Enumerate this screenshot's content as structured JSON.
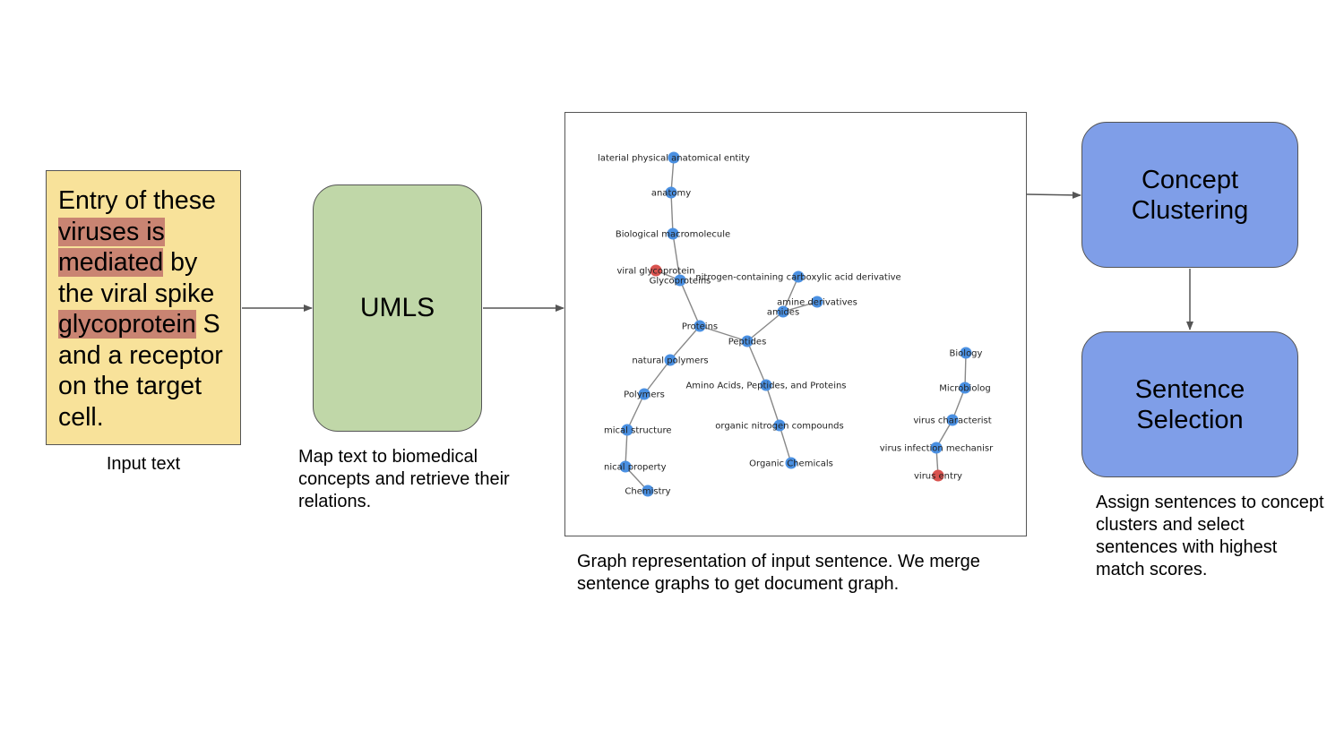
{
  "input": {
    "segments": [
      {
        "text": "Entry of these ",
        "hl": false
      },
      {
        "text": "viruses is",
        "hl": true
      },
      {
        "text": " ",
        "hl": false
      },
      {
        "text": "mediated",
        "hl": true
      },
      {
        "text": " by the viral spike ",
        "hl": false
      },
      {
        "text": "glycoprotein",
        "hl": true
      },
      {
        "text": " S and a receptor on the target cell.",
        "hl": false
      }
    ],
    "caption": "Input text"
  },
  "umls": {
    "label": "UMLS",
    "caption": "Map text to biomedical concepts and retrieve their relations."
  },
  "graph": {
    "caption": "Graph representation of input sentence. We merge sentence graphs to get document graph.",
    "nodes": [
      {
        "id": "n1",
        "label": "laterial physical anatomical entity",
        "color": "blue"
      },
      {
        "id": "n2",
        "label": "anatomy",
        "color": "blue"
      },
      {
        "id": "n3",
        "label": "Biological macromolecule",
        "color": "blue"
      },
      {
        "id": "n4",
        "label": "viral glycoprotein",
        "color": "red"
      },
      {
        "id": "n5",
        "label": "Glycoproteins",
        "color": "blue"
      },
      {
        "id": "n6",
        "label": "nitrogen-containing carboxylic acid derivative",
        "color": "blue"
      },
      {
        "id": "n7",
        "label": "amine derivatives",
        "color": "blue"
      },
      {
        "id": "n8",
        "label": "amides",
        "color": "blue"
      },
      {
        "id": "n9",
        "label": "Proteins",
        "color": "blue"
      },
      {
        "id": "n10",
        "label": "Peptides",
        "color": "blue"
      },
      {
        "id": "n11",
        "label": "natural polymers",
        "color": "blue"
      },
      {
        "id": "n12",
        "label": "Amino Acids, Peptides, and Proteins",
        "color": "blue"
      },
      {
        "id": "n13",
        "label": "Polymers",
        "color": "blue"
      },
      {
        "id": "n14",
        "label": "organic nitrogen compounds",
        "color": "blue"
      },
      {
        "id": "n15",
        "label": "mical structure",
        "color": "blue"
      },
      {
        "id": "n16",
        "label": "Organic Chemicals",
        "color": "blue"
      },
      {
        "id": "n17",
        "label": "nical property",
        "color": "blue"
      },
      {
        "id": "n18",
        "label": "Chemistry",
        "color": "blue"
      },
      {
        "id": "n19",
        "label": "Biology",
        "color": "blue"
      },
      {
        "id": "n20",
        "label": "Microbiolog",
        "color": "blue"
      },
      {
        "id": "n21",
        "label": "virus characterist",
        "color": "blue"
      },
      {
        "id": "n22",
        "label": "virus infection mechanisr",
        "color": "blue"
      },
      {
        "id": "n23",
        "label": "virus entry",
        "color": "red"
      }
    ],
    "edges": [
      [
        "n1",
        "n2"
      ],
      [
        "n2",
        "n3"
      ],
      [
        "n3",
        "n5"
      ],
      [
        "n4",
        "n5"
      ],
      [
        "n5",
        "n9"
      ],
      [
        "n9",
        "n10"
      ],
      [
        "n9",
        "n11"
      ],
      [
        "n10",
        "n8"
      ],
      [
        "n8",
        "n7"
      ],
      [
        "n8",
        "n6"
      ],
      [
        "n10",
        "n12"
      ],
      [
        "n12",
        "n14"
      ],
      [
        "n14",
        "n16"
      ],
      [
        "n11",
        "n13"
      ],
      [
        "n13",
        "n15"
      ],
      [
        "n15",
        "n17"
      ],
      [
        "n17",
        "n18"
      ],
      [
        "n19",
        "n20"
      ],
      [
        "n20",
        "n21"
      ],
      [
        "n21",
        "n22"
      ],
      [
        "n22",
        "n23"
      ]
    ],
    "colors": {
      "blue": "#4a90e2",
      "red": "#d9534f",
      "edge": "#888888"
    }
  },
  "clustering": {
    "label": "Concept Clustering"
  },
  "selection": {
    "label": "Sentence Selection",
    "caption": "Assign sentences to concept clusters and select sentences with highest match scores."
  }
}
